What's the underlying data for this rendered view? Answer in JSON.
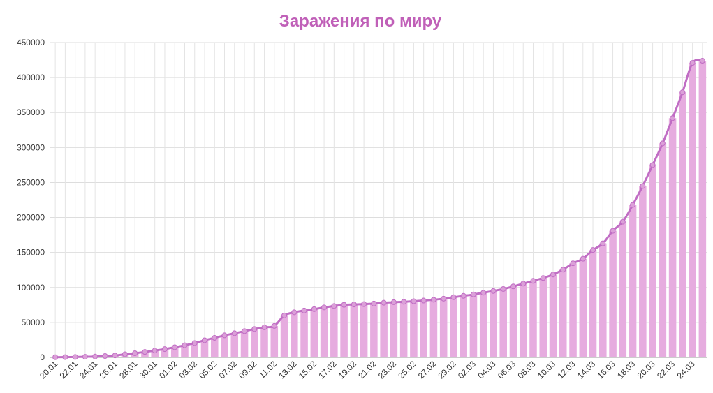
{
  "chart_data": {
    "type": "bar",
    "title": "Заражения по миру",
    "categories": [
      "20.01",
      null,
      "22.01",
      null,
      "24.01",
      null,
      "26.01",
      null,
      "28.01",
      null,
      "30.01",
      null,
      "01.02",
      null,
      "03.02",
      null,
      "05.02",
      null,
      "07.02",
      null,
      "09.02",
      null,
      "11.02",
      null,
      "13.02",
      null,
      "15.02",
      null,
      "17.02",
      null,
      "19.02",
      null,
      "21.02",
      null,
      "23.02",
      null,
      "25.02",
      null,
      "27.02",
      null,
      "29.02",
      null,
      "02.03",
      null,
      "04.03",
      null,
      "06.03",
      null,
      "08.03",
      null,
      "10.03",
      null,
      "12.03",
      null,
      "14.03",
      null,
      "16.03",
      null,
      "18.03",
      null,
      "20.03",
      null,
      "22.03",
      null,
      "24.03",
      null
    ],
    "values": [
      300,
      400,
      600,
      900,
      1300,
      2000,
      2800,
      4500,
      6000,
      7800,
      9800,
      11900,
      14500,
      17300,
      20500,
      24500,
      28000,
      31500,
      34500,
      37500,
      40500,
      43000,
      45000,
      60000,
      64500,
      67000,
      69000,
      71500,
      73500,
      75200,
      75700,
      76200,
      77000,
      78200,
      78900,
      79500,
      80300,
      81300,
      82500,
      84000,
      86000,
      88000,
      90000,
      92500,
      95000,
      97800,
      101500,
      105500,
      109500,
      113500,
      118500,
      125500,
      134500,
      141000,
      153500,
      163000,
      181000,
      194000,
      218000,
      245000,
      275000,
      306000,
      342000,
      379000,
      421000,
      424000
    ],
    "color": "#e6acdf",
    "line_color": "#c06dc4",
    "ylim": [
      0,
      450000
    ],
    "yticks": [
      0,
      50000,
      100000,
      150000,
      200000,
      250000,
      300000,
      350000,
      400000,
      450000
    ],
    "grid": true
  }
}
